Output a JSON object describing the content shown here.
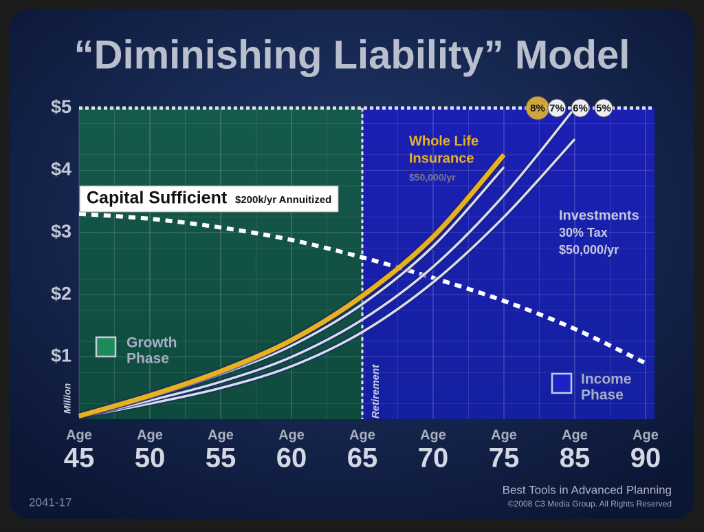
{
  "chart_data": {
    "type": "line",
    "title": "“Diminishing Liability” Model",
    "categories": [
      "45",
      "50",
      "55",
      "60",
      "65",
      "70",
      "75",
      "85",
      "90"
    ],
    "x_axis_word": "Age",
    "y_axis_label": "Million",
    "ylim": [
      0,
      5
    ],
    "yticks": [
      {
        "value": 1,
        "label": "$1"
      },
      {
        "value": 2,
        "label": "$2"
      },
      {
        "value": 3,
        "label": "$3"
      },
      {
        "value": 4,
        "label": "$4"
      },
      {
        "value": 5,
        "label": "$5"
      }
    ],
    "grid": true,
    "retirement_label": "Retirement",
    "series": [
      {
        "name": "8%",
        "color": "#e8b21e",
        "values": [
          0.05,
          0.38,
          0.77,
          1.27,
          1.98,
          2.93,
          4.25,
          null,
          null
        ]
      },
      {
        "name": "7%",
        "color": "#d9ddf2",
        "values": [
          0.05,
          0.35,
          0.72,
          1.18,
          1.85,
          2.78,
          4.05,
          null,
          null
        ]
      },
      {
        "name": "6%",
        "color": "#d9ddf2",
        "values": [
          0.04,
          0.3,
          0.6,
          1.0,
          1.6,
          2.45,
          3.6,
          5.0,
          null
        ]
      },
      {
        "name": "5%",
        "color": "#d9ddf2",
        "values": [
          0.03,
          0.25,
          0.5,
          0.85,
          1.4,
          2.2,
          3.25,
          4.5,
          null
        ]
      },
      {
        "name": "Capital Sufficient",
        "note": "$200k/yr Annuitized",
        "color": "#ffffff",
        "dashed": true,
        "values": [
          3.3,
          3.22,
          3.08,
          2.88,
          2.6,
          2.27,
          1.9,
          1.45,
          0.9
        ]
      }
    ],
    "annotations": {
      "whole_life": [
        "Whole Life",
        "Insurance"
      ],
      "whole_life_amount": "$50,000/yr",
      "investments": [
        "Investments",
        "30% Tax",
        "$50,000/yr"
      ]
    },
    "phases": [
      {
        "label": [
          "Growth",
          "Phase"
        ],
        "color": "#1e8a5a"
      },
      {
        "label": [
          "Income",
          "Phase"
        ],
        "color": "#1a22c8"
      }
    ],
    "footer": {
      "code": "2041-17",
      "tagline": "Best Tools in Advanced Planning",
      "copyright": "©2008 C3 Media Group. All Rights Reserved"
    }
  }
}
